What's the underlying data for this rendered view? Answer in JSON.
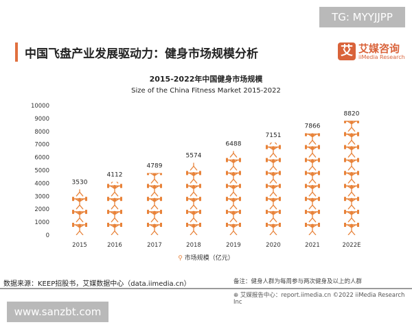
{
  "watermark_top": "TG: MYYJJPP",
  "watermark_bottom": "www.sanzbt.com",
  "header": {
    "title": "中国飞盘产业发展驱动力：健身市场规模分析",
    "logo_mark": "艾",
    "logo_cn": "艾媒咨询",
    "logo_en": "iiMedia Research"
  },
  "footer": {
    "source": "数据来源：KEEP招股书，艾媒数据中心（data.iimedia.cn）",
    "note": "备注：健身人群为每周参与两次健身及以上的人群",
    "copyright": "艾媒报告中心：report.iimedia.cn  ©2022  iiMedia Research  Inc"
  },
  "colors": {
    "accent": "#e0703f",
    "icon": "#e8833a"
  },
  "chart_data": {
    "type": "bar",
    "style": "pictograph (weightlifter icons)",
    "title": "2015-2022年中国健身市场规模",
    "subtitle": "Size of the China Fitness Market 2015-2022",
    "categories": [
      "2015",
      "2016",
      "2017",
      "2018",
      "2019",
      "2020",
      "2021",
      "2022E"
    ],
    "series": [
      {
        "name": "市场规模（亿元）",
        "values": [
          3530,
          4112,
          4789,
          5574,
          6488,
          7151,
          7866,
          8820
        ]
      }
    ],
    "ylim": [
      0,
      10000
    ],
    "yticks": [
      0,
      1000,
      2000,
      3000,
      4000,
      5000,
      6000,
      7000,
      8000,
      9000,
      10000
    ],
    "grid": false,
    "legend": "bottom"
  }
}
